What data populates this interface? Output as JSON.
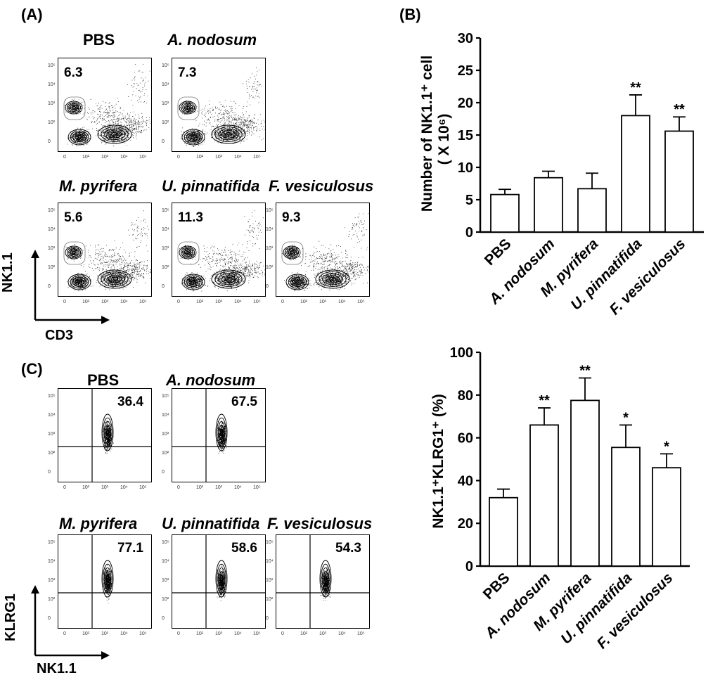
{
  "panel_labels": {
    "a": "(A)",
    "b": "(B)",
    "c": "(C)"
  },
  "flow_axes": {
    "a_y": "NK1.1",
    "a_x": "CD3",
    "c_y": "KLRG1",
    "c_x": "NK1.1"
  },
  "flow_ticks": {
    "x": [
      "0",
      "10²",
      "10³",
      "10⁴",
      "10⁵"
    ],
    "y": [
      "10⁵",
      "10⁴",
      "10³",
      "10²",
      "0"
    ]
  },
  "panel_a": [
    {
      "title": "PBS",
      "italic": false,
      "value": "6.3"
    },
    {
      "title": "A. nodosum",
      "italic": true,
      "value": "7.3"
    },
    {
      "title": "M. pyrifera",
      "italic": true,
      "value": "5.6"
    },
    {
      "title": "U. pinnatifida",
      "italic": true,
      "value": "11.3"
    },
    {
      "title": "F. vesiculosus",
      "italic": true,
      "value": "9.3"
    }
  ],
  "panel_c": [
    {
      "title": "PBS",
      "italic": false,
      "value": "36.4"
    },
    {
      "title": "A. nodosum",
      "italic": true,
      "value": "67.5"
    },
    {
      "title": "M. pyrifera",
      "italic": true,
      "value": "77.1"
    },
    {
      "title": "U. pinnatifida",
      "italic": true,
      "value": "58.6"
    },
    {
      "title": "F. vesiculosus",
      "italic": true,
      "value": "54.3"
    }
  ],
  "chart_data": [
    {
      "type": "bar",
      "title": "",
      "ylabel_line1": "Number of NK1.1⁺ cell",
      "ylabel_line2": "( X 10⁶)",
      "categories": [
        "PBS",
        "A. nodosum",
        "M. pyrifera",
        "U. pinnatifida",
        "F. vesiculosus"
      ],
      "values": [
        5.8,
        8.4,
        6.7,
        18.0,
        15.6
      ],
      "errors": [
        0.8,
        1.0,
        2.4,
        3.2,
        2.2
      ],
      "significance": [
        "",
        "",
        "",
        "**",
        "**"
      ],
      "ylim": [
        0,
        30
      ],
      "yticks": [
        0,
        5,
        10,
        15,
        20,
        25,
        30
      ]
    },
    {
      "type": "bar",
      "title": "",
      "ylabel": "NK1.1⁺KLRG1⁺ (%)",
      "categories": [
        "PBS",
        "A. nodosum",
        "M. pyrifera",
        "U. pinnatifida",
        "F. vesiculosus"
      ],
      "values": [
        32,
        66,
        77.5,
        55.5,
        46
      ],
      "errors": [
        4,
        8,
        10.5,
        10.5,
        6.5
      ],
      "significance": [
        "",
        "**",
        "**",
        "*",
        "*"
      ],
      "ylim": [
        0,
        100
      ],
      "yticks": [
        0,
        20,
        40,
        60,
        80,
        100
      ]
    }
  ]
}
